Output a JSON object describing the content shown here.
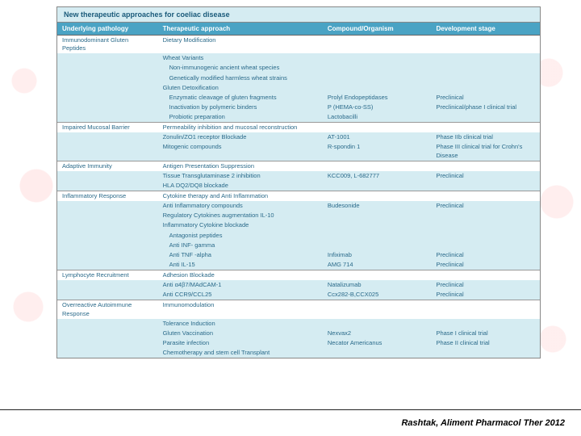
{
  "title": "New therapeutic approaches for coeliac disease",
  "headers": {
    "c1": "Underlying pathology",
    "c2": "Therapeutic approach",
    "c3": "Compound/Organism",
    "c4": "Development stage"
  },
  "citation": "Rashtak, Aliment Pharmacol Ther 2012",
  "colors": {
    "header_bg": "#4aa3c4",
    "alt_bg": "#d5ecf2",
    "text": "#2a6a8a"
  },
  "sections": [
    {
      "pathology": "Immunodominant Gluten Peptides",
      "rows": [
        {
          "alt": false,
          "c2": "Dietary Modification",
          "c3": "",
          "c4": ""
        },
        {
          "alt": true,
          "c2": "Wheat Variants",
          "c3": "",
          "c4": ""
        },
        {
          "alt": true,
          "c2i": "Non-immunogenic ancient wheat species",
          "c3": "",
          "c4": ""
        },
        {
          "alt": true,
          "c2i": "Genetically modified harmless wheat strains",
          "c3": "",
          "c4": ""
        },
        {
          "alt": true,
          "c2": "Gluten Detoxification",
          "c3": "",
          "c4": ""
        },
        {
          "alt": true,
          "c2i": "Enzymatic cleavage of gluten fragments",
          "c3": "Prolyl Endopeptidases",
          "c4": "Preclinical"
        },
        {
          "alt": true,
          "c2i": "Inactivation by polymeric binders",
          "c3": "P (HEMA-co-SS)",
          "c4": "Preclinical/phase I clinical trial"
        },
        {
          "alt": true,
          "c2i": "Probiotic preparation",
          "c3": "Lactobacilli",
          "c4": ""
        }
      ]
    },
    {
      "pathology": "Impaired Mucosal Barrier",
      "rows": [
        {
          "alt": false,
          "c2": "Permeability inhibition and mucosal reconstruction",
          "c3": "",
          "c4": ""
        },
        {
          "alt": true,
          "c2": "Zonulin/ZO1 receptor Blockade",
          "c3": "AT-1001",
          "c4": "Phase IIb clinical trial"
        },
        {
          "alt": true,
          "c2": "Mitogenic compounds",
          "c3": "R-spondin 1",
          "c4": "Phase III clinical trial for Crohn's Disease"
        }
      ]
    },
    {
      "pathology": "Adaptive Immunity",
      "rows": [
        {
          "alt": false,
          "c2": "Antigen Presentation Suppression",
          "c3": "",
          "c4": ""
        },
        {
          "alt": true,
          "c2": "Tissue Transglutaminase 2 inhibition",
          "c3": "KCC009, L-682777",
          "c4": "Preclinical"
        },
        {
          "alt": true,
          "c2": "HLA DQ2/DQ8 blockade",
          "c3": "",
          "c4": ""
        }
      ]
    },
    {
      "pathology": "Inflammatory Response",
      "rows": [
        {
          "alt": false,
          "c2": "Cytokine therapy and Anti Inflammation",
          "c3": "",
          "c4": ""
        },
        {
          "alt": true,
          "c2": "Anti Inflammatory compounds",
          "c3": "Budesonide",
          "c4": "Preclinical"
        },
        {
          "alt": true,
          "c2": "Regulatory Cytokines augmentation IL-10",
          "c3": "",
          "c4": ""
        },
        {
          "alt": true,
          "c2": "Inflammatory Cytokine blockade",
          "c3": "",
          "c4": ""
        },
        {
          "alt": true,
          "c2i": "Antagonist peptides",
          "c3": "",
          "c4": ""
        },
        {
          "alt": true,
          "c2i": "Anti INF- gamma",
          "c3": "",
          "c4": ""
        },
        {
          "alt": true,
          "c2i": "Anti TNF -alpha",
          "c3": "Infiximab",
          "c4": "Preclinical"
        },
        {
          "alt": true,
          "c2i": "Anti IL-15",
          "c3": "AMG 714",
          "c4": "Preclinical"
        }
      ]
    },
    {
      "pathology": "Lymphocyte Recruitment",
      "rows": [
        {
          "alt": false,
          "c2": "Adhesion Blockade",
          "c3": "",
          "c4": ""
        },
        {
          "alt": true,
          "c2": "Anti α4β7/MAdCAM-1",
          "c3": "Natalizumab",
          "c4": "Preclinical"
        },
        {
          "alt": true,
          "c2": "Anti CCR9/CCL25",
          "c3": "Ccx282-B,CCX025",
          "c4": "Preclinical"
        }
      ]
    },
    {
      "pathology": "Overreactive Autoimmune Response",
      "rows": [
        {
          "alt": false,
          "c2": "Immunomodulation",
          "c3": "",
          "c4": ""
        },
        {
          "alt": true,
          "c2": "Tolerance Induction",
          "c3": "",
          "c4": ""
        },
        {
          "alt": true,
          "c2": "Gluten Vaccination",
          "c3": "Nexvax2",
          "c4": "Phase I clinical trial"
        },
        {
          "alt": true,
          "c2": "Parasite infection",
          "c3": "Necator Americanus",
          "c4": "Phase II clinical trial"
        },
        {
          "alt": true,
          "c2": "Chemotherapy and stem cell Transplant",
          "c3": "",
          "c4": ""
        }
      ]
    }
  ]
}
